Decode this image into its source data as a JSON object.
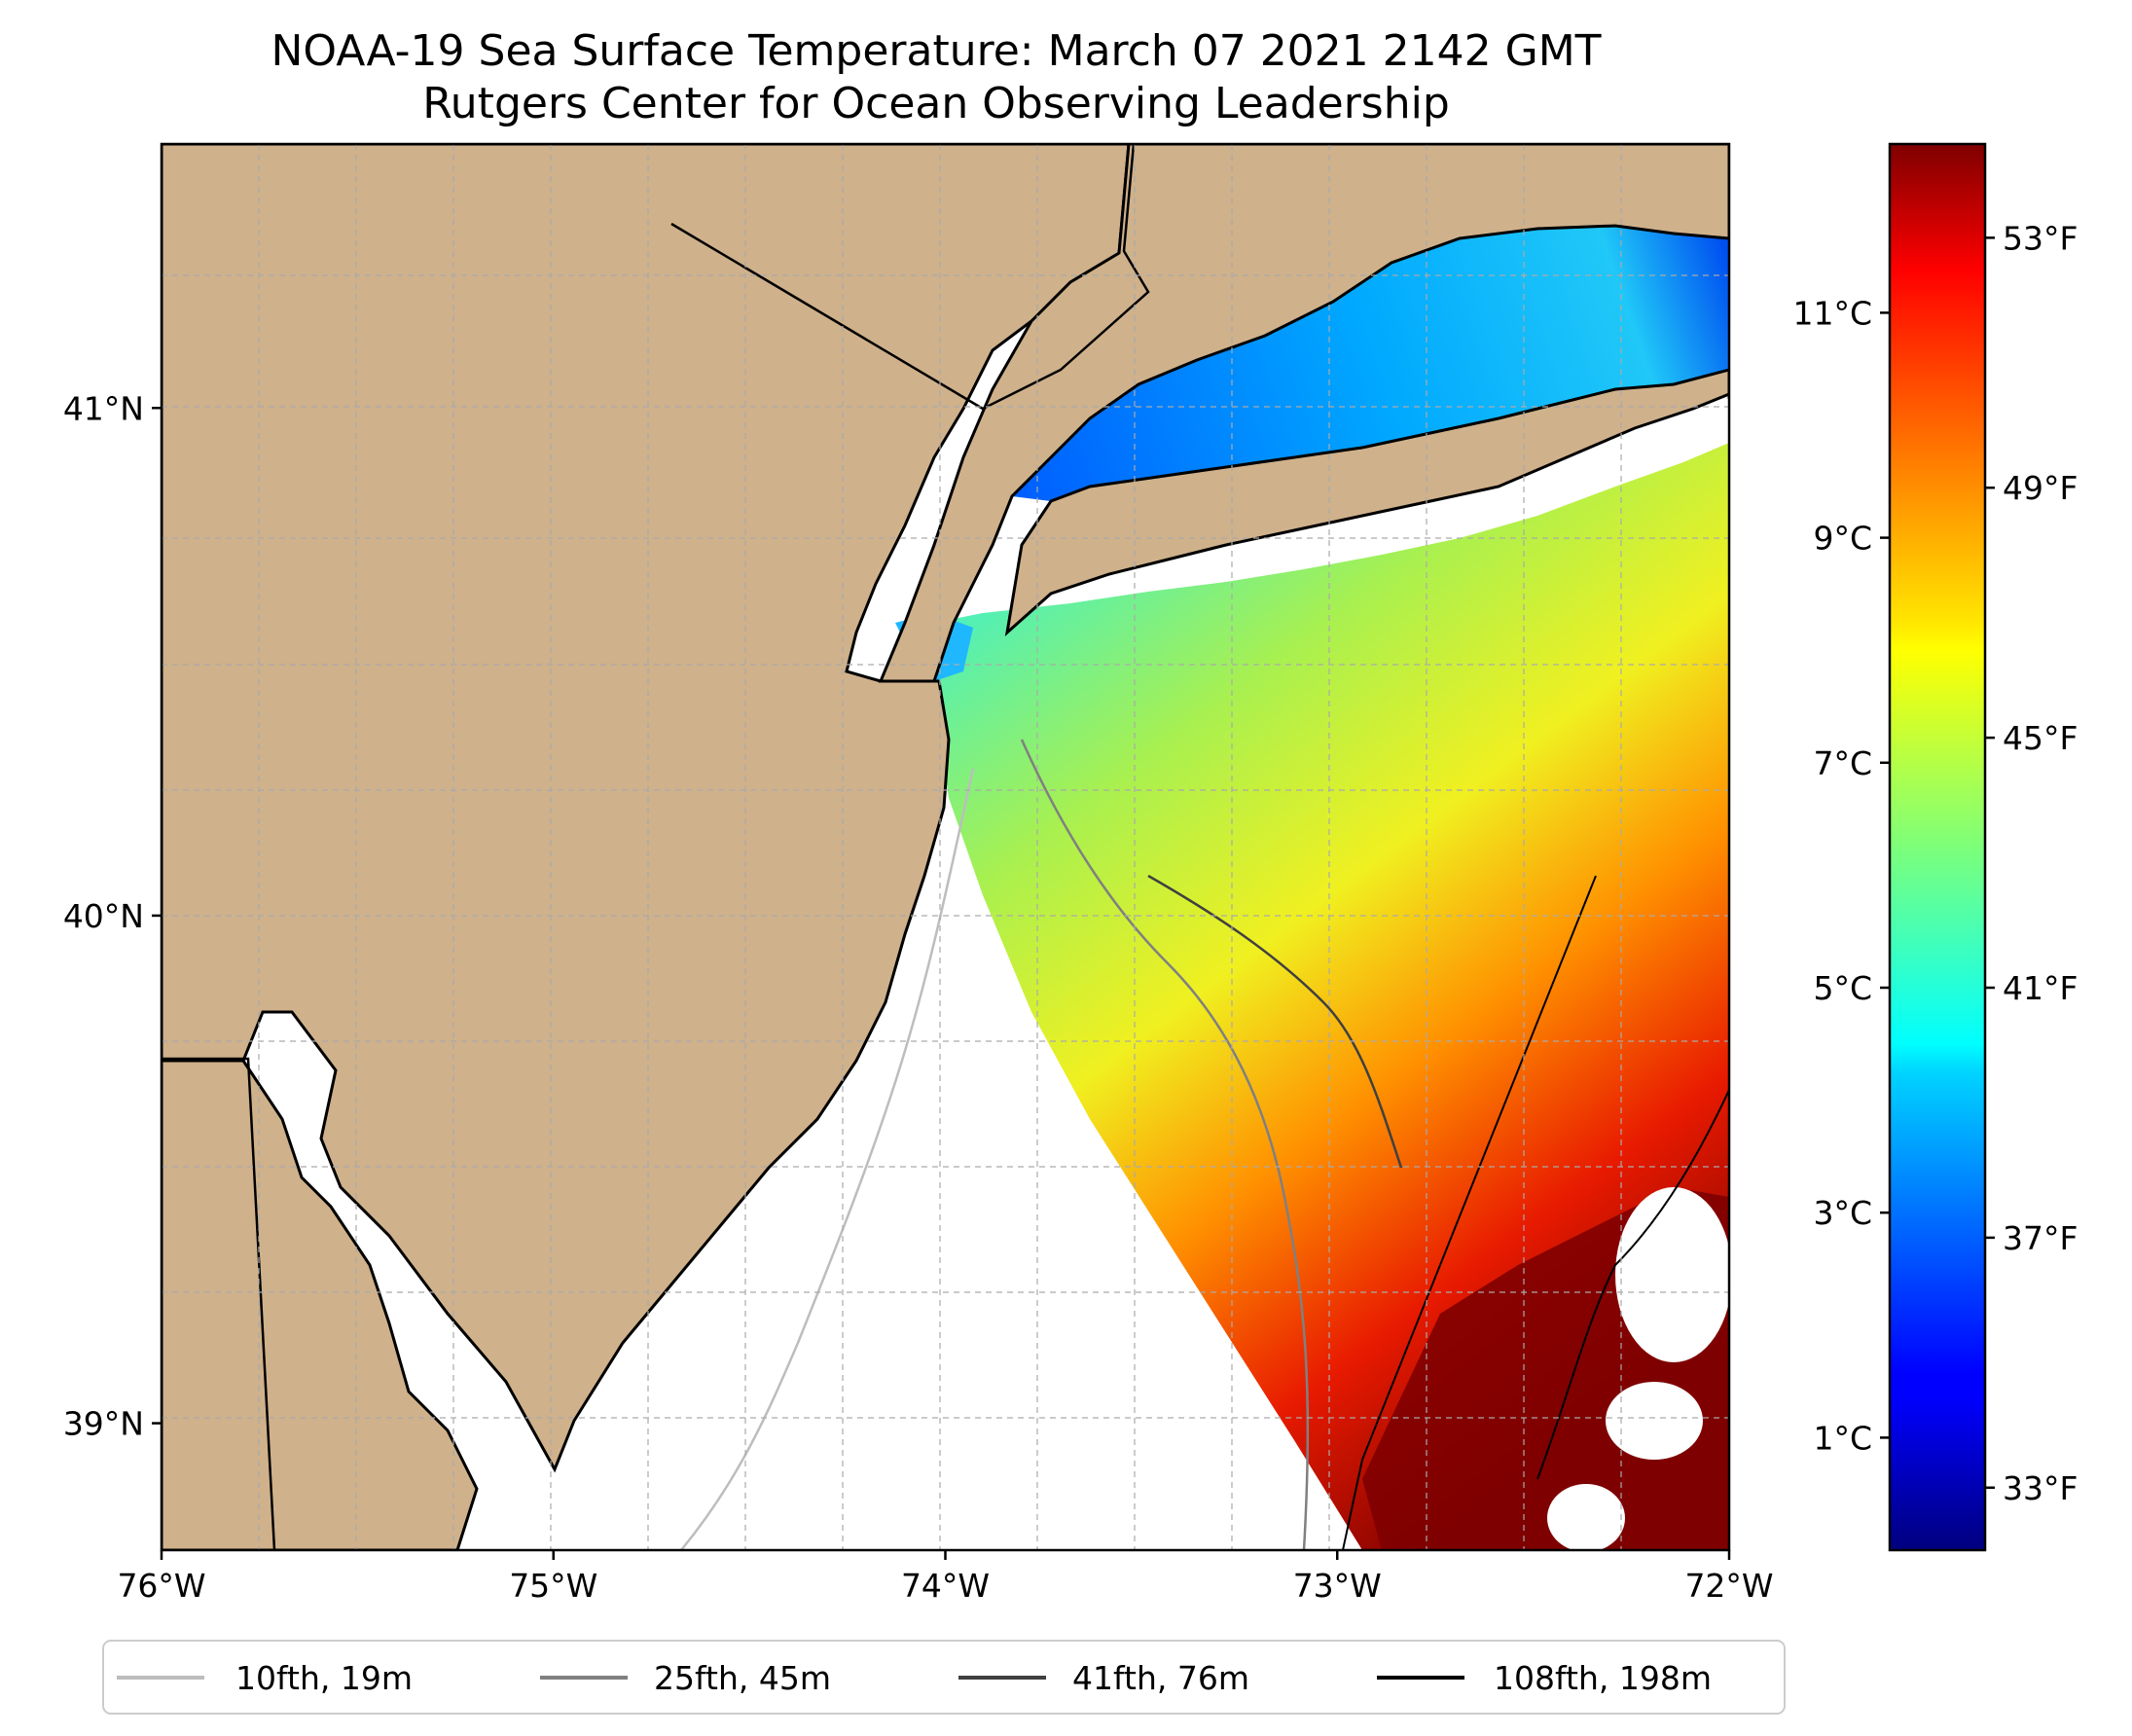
{
  "title": {
    "line1": "NOAA-19 Sea Surface Temperature: March 07 2021 2142 GMT",
    "line2": "Rutgers Center for Ocean Observing Leadership"
  },
  "map": {
    "lon_range": [
      -76,
      -72
    ],
    "lat_range": [
      38.75,
      41.52
    ],
    "land_color": "#cfb18b",
    "no_data_color": "#ffffff",
    "gridlines": "dashed",
    "x_tick_labels": [
      {
        "lon": -76,
        "label": "76°W"
      },
      {
        "lon": -75,
        "label": "75°W"
      },
      {
        "lon": -74,
        "label": "74°W"
      },
      {
        "lon": -73,
        "label": "73°W"
      },
      {
        "lon": -72,
        "label": "72°W"
      }
    ],
    "y_tick_labels": [
      {
        "lat": 41,
        "label": "41°N"
      },
      {
        "lat": 40,
        "label": "40°N"
      },
      {
        "lat": 39,
        "label": "39°N"
      }
    ]
  },
  "colorbar": {
    "colormap": "jet",
    "range_celsius": [
      0.0,
      12.5
    ],
    "celsius_ticks": [
      {
        "value": 1,
        "label": "1°C"
      },
      {
        "value": 3,
        "label": "3°C"
      },
      {
        "value": 5,
        "label": "5°C"
      },
      {
        "value": 7,
        "label": "7°C"
      },
      {
        "value": 9,
        "label": "9°C"
      },
      {
        "value": 11,
        "label": "11°C"
      }
    ],
    "fahrenheit_ticks": [
      {
        "value": 33,
        "label": "33°F"
      },
      {
        "value": 37,
        "label": "37°F"
      },
      {
        "value": 41,
        "label": "41°F"
      },
      {
        "value": 45,
        "label": "45°F"
      },
      {
        "value": 49,
        "label": "49°F"
      },
      {
        "value": 53,
        "label": "53°F"
      }
    ]
  },
  "legend": {
    "placement": "bottom",
    "items": [
      {
        "label": "10fth, 19m",
        "color": "#bdbdbd"
      },
      {
        "label": "25fth, 45m",
        "color": "#808080"
      },
      {
        "label": "41fth, 76m",
        "color": "#404040"
      },
      {
        "label": "108fth, 198m",
        "color": "#000000"
      }
    ]
  }
}
